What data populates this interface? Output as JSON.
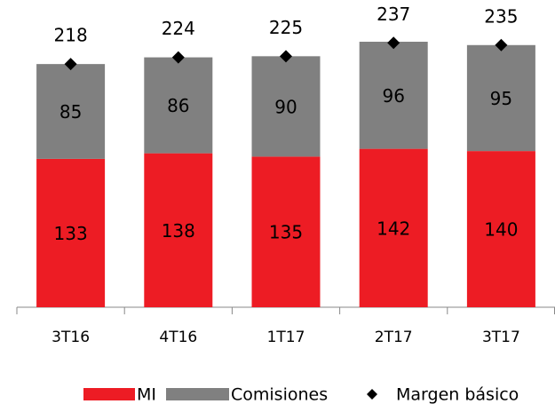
{
  "chart_data": {
    "type": "stacked_bar",
    "categories": [
      "3T16",
      "4T16",
      "1T17",
      "2T17",
      "3T17"
    ],
    "series": [
      {
        "name": "MI",
        "color": "#ed1c24",
        "values": [
          133,
          138,
          135,
          142,
          140
        ]
      },
      {
        "name": "Comisiones",
        "color": "#808080",
        "values": [
          85,
          86,
          90,
          96,
          95
        ]
      },
      {
        "name": "Margen básico",
        "color": "#000000",
        "type": "scatter",
        "marker": "diamond",
        "values": [
          218,
          224,
          225,
          237,
          235
        ]
      }
    ],
    "legend": "bottom"
  }
}
